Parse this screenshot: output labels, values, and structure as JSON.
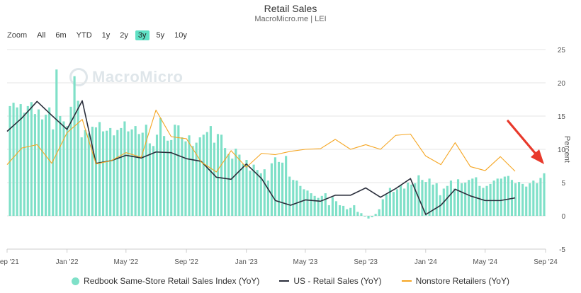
{
  "header": {
    "title": "Retail Sales",
    "subtitle": "MacroMicro.me | LEI"
  },
  "zoom": {
    "label": "Zoom",
    "options": [
      "All",
      "6m",
      "YTD",
      "1y",
      "2y",
      "3y",
      "5y",
      "10y"
    ],
    "active": "3y",
    "active_color": "#5fe0c4"
  },
  "watermark": "MacroMicro",
  "annotation": {
    "type": "red-arrow",
    "color": "#e8392b"
  },
  "chart_data": {
    "type": "bar",
    "y_axis": {
      "label": "Percent",
      "side": "right",
      "ticks": [
        25,
        20,
        15,
        10,
        5,
        0,
        -5
      ],
      "min": -5,
      "max": 25
    },
    "x_axis": {
      "ticks": [
        "Sep '21",
        "Jan '22",
        "May '22",
        "Sep '22",
        "Jan '23",
        "May '23",
        "Sep '23",
        "Jan '24",
        "May '24",
        "Sep '24"
      ],
      "start": "2021-09-01",
      "end": "2024-09-01"
    },
    "grid": true,
    "legend_position": "bottom",
    "series": [
      {
        "name": "Redbook Same-Store Retail Sales Index (YoY)",
        "kind": "bar",
        "color": "#7fe0c8",
        "values": [
          16.5,
          17.0,
          16.3,
          16.8,
          15.5,
          16.5,
          17.1,
          15.3,
          16.0,
          14.5,
          15.2,
          16.3,
          13.0,
          22.0,
          15.0,
          14.2,
          13.5,
          16.4,
          21.0,
          17.3,
          11.8,
          12.9,
          12.4,
          13.4,
          13.3,
          14.1,
          12.7,
          12.8,
          13.2,
          12.1,
          12.9,
          13.2,
          14.2,
          12.7,
          13.0,
          13.5,
          12.3,
          12.5,
          13.7,
          10.9,
          10.5,
          12.2,
          14.7,
          12.0,
          11.3,
          11.4,
          13.7,
          13.6,
          11.8,
          11.2,
          12.1,
          10.5,
          11.0,
          11.8,
          12.2,
          12.6,
          13.5,
          11.0,
          12.3,
          12.2,
          10.2,
          9.3,
          8.6,
          10.1,
          9.2,
          7.8,
          8.4,
          6.8,
          7.7,
          6.9,
          6.4,
          7.0,
          5.3,
          7.9,
          8.8,
          8.1,
          8.0,
          9.0,
          5.9,
          5.4,
          5.3,
          4.5,
          4.0,
          3.8,
          3.4,
          3.0,
          2.7,
          3.0,
          3.4,
          1.6,
          2.8,
          2.2,
          1.6,
          1.5,
          1.0,
          1.2,
          1.6,
          0.6,
          0.4,
          -0.1,
          -0.4,
          -0.2,
          0.3,
          1.0,
          2.5,
          3.2,
          4.2,
          3.6,
          4.0,
          4.6,
          4.1,
          5.0,
          4.7,
          4.9,
          6.1,
          5.4,
          5.1,
          5.6,
          4.7,
          4.9,
          3.1,
          4.1,
          4.5,
          5.3,
          4.1,
          5.5,
          4.9,
          5.0,
          5.4,
          5.6,
          5.8,
          4.5,
          4.2,
          4.5,
          4.8,
          5.3,
          5.6,
          5.6,
          5.9,
          6.0,
          5.4,
          4.9,
          5.1,
          4.8,
          4.4,
          4.9,
          5.3,
          4.9,
          5.7,
          6.4
        ]
      },
      {
        "name": "US - Retail Sales (YoY)",
        "kind": "line",
        "color": "#2a2e3b",
        "points": [
          [
            "2021-09",
            12.7
          ],
          [
            "2021-10",
            14.7
          ],
          [
            "2021-11",
            17.2
          ],
          [
            "2021-12",
            15.1
          ],
          [
            "2022-01",
            13.0
          ],
          [
            "2022-02",
            17.3
          ],
          [
            "2022-03",
            7.9
          ],
          [
            "2022-04",
            8.3
          ],
          [
            "2022-05",
            9.1
          ],
          [
            "2022-06",
            8.7
          ],
          [
            "2022-07",
            9.6
          ],
          [
            "2022-08",
            9.5
          ],
          [
            "2022-09",
            8.6
          ],
          [
            "2022-10",
            8.2
          ],
          [
            "2022-11",
            5.8
          ],
          [
            "2022-12",
            5.5
          ],
          [
            "2023-01",
            7.8
          ],
          [
            "2023-02",
            5.6
          ],
          [
            "2023-03",
            2.3
          ],
          [
            "2023-04",
            1.6
          ],
          [
            "2023-05",
            2.4
          ],
          [
            "2023-06",
            2.2
          ],
          [
            "2023-07",
            3.1
          ],
          [
            "2023-08",
            3.1
          ],
          [
            "2023-09",
            4.2
          ],
          [
            "2023-10",
            2.8
          ],
          [
            "2023-11",
            4.1
          ],
          [
            "2023-12",
            5.6
          ],
          [
            "2024-01",
            0.2
          ],
          [
            "2024-02",
            1.6
          ],
          [
            "2024-03",
            4.0
          ],
          [
            "2024-04",
            3.0
          ],
          [
            "2024-05",
            2.3
          ],
          [
            "2024-06",
            2.3
          ],
          [
            "2024-07",
            2.7
          ]
        ]
      },
      {
        "name": "Nonstore Retailers (YoY)",
        "kind": "line",
        "color": "#f5a623",
        "points": [
          [
            "2021-09",
            7.7
          ],
          [
            "2021-10",
            10.2
          ],
          [
            "2021-11",
            10.7
          ],
          [
            "2021-12",
            7.9
          ],
          [
            "2022-01",
            12.5
          ],
          [
            "2022-02",
            14.5
          ],
          [
            "2022-03",
            7.8
          ],
          [
            "2022-04",
            8.3
          ],
          [
            "2022-05",
            9.5
          ],
          [
            "2022-06",
            8.8
          ],
          [
            "2022-07",
            15.9
          ],
          [
            "2022-08",
            11.9
          ],
          [
            "2022-09",
            11.6
          ],
          [
            "2022-10",
            8.1
          ],
          [
            "2022-11",
            6.6
          ],
          [
            "2022-12",
            9.8
          ],
          [
            "2023-01",
            7.3
          ],
          [
            "2023-02",
            9.4
          ],
          [
            "2023-03",
            9.2
          ],
          [
            "2023-04",
            9.7
          ],
          [
            "2023-05",
            10.0
          ],
          [
            "2023-06",
            10.1
          ],
          [
            "2023-07",
            11.5
          ],
          [
            "2023-08",
            10.0
          ],
          [
            "2023-09",
            10.7
          ],
          [
            "2023-10",
            10.0
          ],
          [
            "2023-11",
            12.1
          ],
          [
            "2023-12",
            12.3
          ],
          [
            "2024-01",
            9.0
          ],
          [
            "2024-02",
            7.7
          ],
          [
            "2024-03",
            11.0
          ],
          [
            "2024-04",
            7.4
          ],
          [
            "2024-05",
            6.8
          ],
          [
            "2024-06",
            8.9
          ],
          [
            "2024-07",
            6.7
          ]
        ]
      }
    ]
  }
}
